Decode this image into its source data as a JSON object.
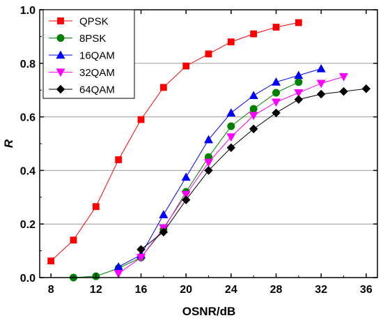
{
  "chart_data": {
    "type": "line",
    "xlabel": "OSNR/dB",
    "ylabel": "R",
    "xlim": [
      7,
      37
    ],
    "ylim": [
      0,
      1.0
    ],
    "xticks": [
      "8",
      "12",
      "16",
      "20",
      "24",
      "28",
      "32",
      "36"
    ],
    "yticks": [
      "0.0",
      "0.2",
      "0.4",
      "0.6",
      "0.8",
      "1.0"
    ],
    "grid": "y-major",
    "legend_position": "top-left",
    "series": [
      {
        "name": "QPSK",
        "color": "#ff0000",
        "marker": "square",
        "x": [
          8,
          10,
          12,
          14,
          16,
          18,
          20,
          22,
          24,
          26,
          28,
          30
        ],
        "y": [
          0.062,
          0.14,
          0.265,
          0.44,
          0.59,
          0.71,
          0.79,
          0.835,
          0.88,
          0.91,
          0.935,
          0.952
        ]
      },
      {
        "name": "8PSK",
        "color": "#008000",
        "marker": "circle",
        "x": [
          10,
          12,
          14,
          16,
          18,
          20,
          22,
          24,
          26,
          28,
          30
        ],
        "y": [
          0.0,
          0.005,
          0.035,
          0.075,
          0.18,
          0.32,
          0.45,
          0.565,
          0.63,
          0.69,
          0.73
        ]
      },
      {
        "name": "16QAM",
        "color": "#0000ff",
        "marker": "triangle-up",
        "x": [
          14,
          16,
          18,
          20,
          22,
          24,
          26,
          28,
          30,
          32
        ],
        "y": [
          0.04,
          0.085,
          0.235,
          0.375,
          0.515,
          0.615,
          0.68,
          0.73,
          0.755,
          0.78
        ]
      },
      {
        "name": "32QAM",
        "color": "#ff00ff",
        "marker": "triangle-down",
        "x": [
          14,
          16,
          18,
          20,
          22,
          24,
          26,
          28,
          30,
          32,
          34
        ],
        "y": [
          0.015,
          0.075,
          0.185,
          0.31,
          0.43,
          0.525,
          0.605,
          0.655,
          0.69,
          0.725,
          0.75
        ]
      },
      {
        "name": "64QAM",
        "color": "#000000",
        "marker": "diamond",
        "x": [
          16,
          18,
          20,
          22,
          24,
          26,
          28,
          30,
          32,
          34,
          36
        ],
        "y": [
          0.105,
          0.17,
          0.29,
          0.4,
          0.485,
          0.555,
          0.615,
          0.665,
          0.685,
          0.695,
          0.705
        ]
      }
    ]
  }
}
